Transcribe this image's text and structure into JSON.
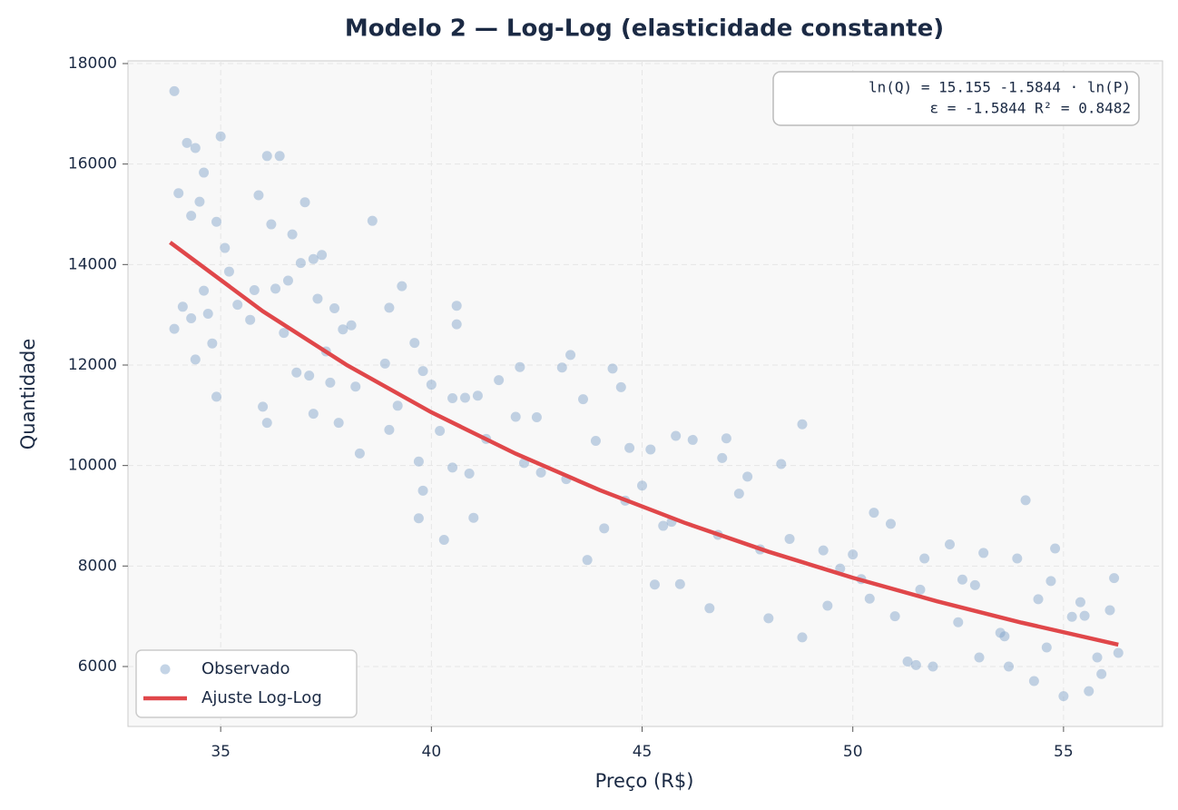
{
  "chart_data": {
    "type": "scatter",
    "title": "Modelo 2 — Log-Log  (elasticidade constante)",
    "xlabel": "Preço (R$)",
    "ylabel": "Quantidade",
    "annotation": [
      "ln(Q) = 15.155  -1.5844 · ln(P)",
      "ε = -1.5844   R² = 0.8482"
    ],
    "xlim": [
      32.8,
      57.35
    ],
    "ylim": [
      4807,
      18054
    ],
    "xticks": [
      35,
      40,
      45,
      50,
      55
    ],
    "yticks": [
      6000,
      8000,
      10000,
      12000,
      14000,
      16000,
      18000
    ],
    "grid": true,
    "legend": "lower left",
    "series": [
      {
        "name": "Observado",
        "type": "scatter",
        "color": "#7da0c8",
        "x": [
          33.9,
          34.0,
          34.2,
          34.4,
          34.6,
          34.3,
          34.5,
          34.9,
          35.0,
          35.1,
          34.1,
          34.3,
          34.4,
          33.9,
          34.6,
          34.7,
          34.8,
          34.9,
          35.2,
          35.4,
          35.7,
          35.9,
          36.1,
          36.4,
          36.2,
          35.8,
          36.0,
          36.1,
          36.3,
          36.6,
          36.7,
          36.9,
          37.0,
          37.2,
          37.4,
          37.3,
          36.5,
          36.8,
          37.1,
          37.2,
          37.5,
          37.7,
          37.9,
          38.1,
          38.3,
          37.8,
          38.6,
          39.0,
          39.3,
          38.9,
          39.0,
          39.2,
          39.6,
          39.8,
          39.7,
          39.8,
          39.7,
          40.0,
          40.2,
          40.5,
          40.6,
          40.6,
          40.8,
          40.9,
          41.1,
          40.3,
          41.0,
          41.6,
          42.1,
          42.0,
          42.2,
          42.5,
          43.1,
          43.3,
          43.6,
          43.9,
          44.3,
          44.5,
          44.1,
          43.7,
          44.7,
          45.0,
          45.2,
          45.7,
          45.8,
          45.9,
          45.3,
          46.2,
          46.6,
          46.9,
          47.0,
          47.3,
          47.5,
          48.3,
          48.8,
          48.0,
          48.5,
          48.8,
          49.3,
          49.7,
          50.0,
          50.2,
          50.5,
          50.9,
          51.0,
          51.3,
          51.5,
          51.7,
          51.9,
          52.3,
          52.6,
          52.9,
          53.0,
          53.1,
          53.5,
          53.7,
          53.9,
          54.1,
          54.3,
          54.4,
          54.7,
          54.8,
          55.0,
          55.2,
          55.4,
          55.6,
          55.8,
          55.9,
          56.2,
          56.3,
          56.1,
          55.5,
          54.6,
          53.6,
          52.5,
          51.6,
          50.4,
          49.4,
          47.8,
          46.8,
          45.5,
          44.6,
          43.2,
          42.6,
          41.3,
          40.5,
          38.2,
          37.6
        ],
        "values": [
          17450,
          15420,
          16420,
          16320,
          15830,
          14970,
          15250,
          14850,
          16550,
          14330,
          13160,
          12930,
          12110,
          12720,
          13480,
          13020,
          12430,
          11370,
          13860,
          13200,
          12900,
          15380,
          16160,
          16160,
          14800,
          13490,
          11170,
          10850,
          13520,
          13680,
          14600,
          14030,
          15240,
          14110,
          14190,
          13320,
          12640,
          11850,
          11790,
          11030,
          12270,
          13130,
          12710,
          12790,
          10240,
          10850,
          14870,
          13140,
          13570,
          12030,
          10710,
          11190,
          12440,
          11880,
          10080,
          9500,
          8950,
          11610,
          10690,
          11340,
          13180,
          12810,
          11350,
          9840,
          11390,
          8520,
          8960,
          11700,
          11960,
          10970,
          10050,
          10960,
          11950,
          12200,
          11320,
          10490,
          11930,
          11560,
          8750,
          8120,
          10350,
          9600,
          10320,
          8880,
          10590,
          7640,
          7630,
          10510,
          7160,
          10150,
          10540,
          9440,
          9780,
          10030,
          10820,
          6960,
          8540,
          6580,
          8310,
          7950,
          8230,
          7740,
          9060,
          8840,
          7000,
          6100,
          6030,
          8150,
          6000,
          8430,
          7730,
          7620,
          6180,
          8260,
          6670,
          6000,
          8150,
          9310,
          5710,
          7340,
          7700,
          8350,
          5410,
          6990,
          7280,
          5510,
          6180,
          5850,
          7760,
          6270,
          7120,
          7010,
          6380,
          6600,
          6880,
          7530,
          7350,
          7210,
          8330,
          8620,
          8800,
          9300,
          9730,
          9860,
          10530,
          9960,
          11570,
          11650
        ]
      },
      {
        "name": "Ajuste Log-Log",
        "type": "line",
        "color": "#e0474a",
        "x": [
          33.8,
          36,
          38,
          40,
          42,
          44,
          46,
          48,
          50,
          52,
          54,
          56.3
        ],
        "values": [
          14440,
          13070,
          11996,
          11059,
          10236,
          9509,
          8863,
          8285,
          7766,
          7298,
          6874,
          6434
        ]
      }
    ]
  }
}
